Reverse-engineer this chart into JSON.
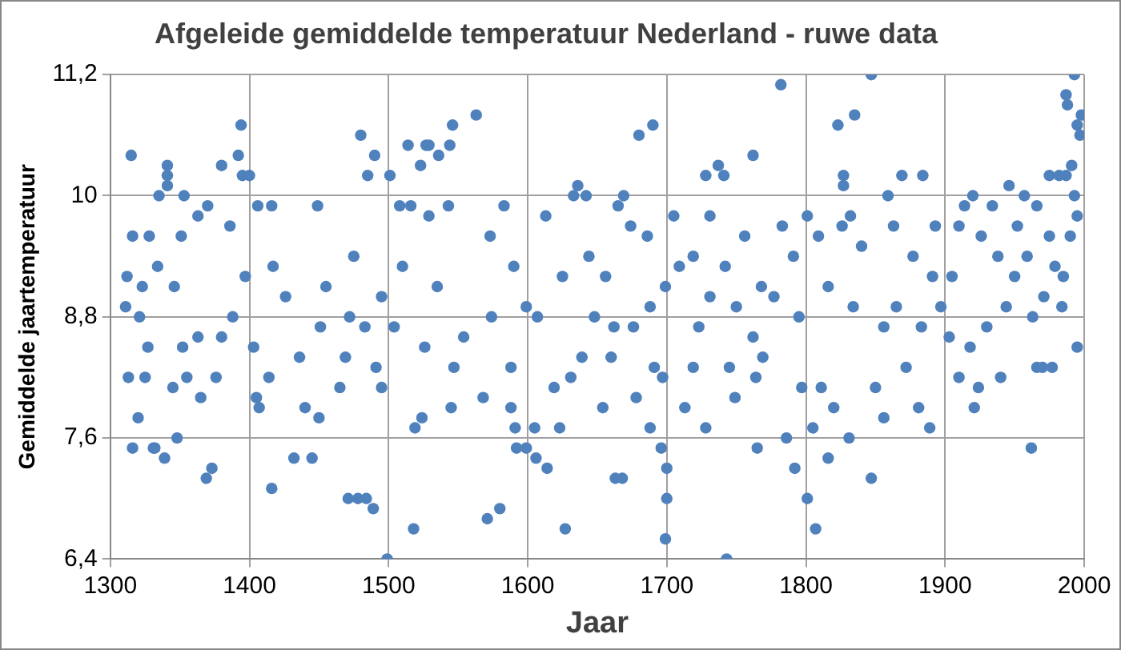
{
  "chart_data": {
    "type": "scatter",
    "title": "Afgeleide gemiddelde temperatuur Nederland - ruwe data",
    "xlabel": "Jaar",
    "ylabel": "Gemiddelde jaartemperatuur",
    "xlim": [
      1300,
      2000
    ],
    "xticks": [
      1300,
      1400,
      1500,
      1600,
      1700,
      1800,
      1900,
      2000
    ],
    "ylim": [
      6.4,
      11.2
    ],
    "yticks": [
      {
        "value": 6.4,
        "label": "6,4"
      },
      {
        "value": 7.6,
        "label": "7,6"
      },
      {
        "value": 8.8,
        "label": "8,8"
      },
      {
        "value": 10,
        "label": "10"
      },
      {
        "value": 11.2,
        "label": "11,2"
      }
    ],
    "grid": true,
    "legend": false,
    "marker": "circle",
    "series": [
      {
        "color": "#4f81bd",
        "x": [
          1315,
          1394,
          1341,
          1341,
          1341,
          1380,
          1392,
          1395,
          1400,
          1335,
          1353,
          1320,
          1316,
          1331,
          1332,
          1339,
          1348,
          1369,
          1373,
          1416,
          1432,
          1445,
          1471,
          1478,
          1484,
          1489,
          1499,
          1518,
          1480,
          1490,
          1485,
          1501,
          1514,
          1527,
          1523,
          1519,
          1524,
          1311,
          1313,
          1325,
          1327,
          1321,
          1316,
          1312,
          1328,
          1323,
          1334,
          1346,
          1351,
          1352,
          1345,
          1355,
          1365,
          1363,
          1363,
          1370,
          1376,
          1380,
          1386,
          1388,
          1397,
          1403,
          1406,
          1405,
          1407,
          1414,
          1416,
          1417,
          1426,
          1436,
          1440,
          1449,
          1451,
          1450,
          1455,
          1465,
          1469,
          1472,
          1475,
          1483,
          1491,
          1495,
          1495,
          1504,
          1508,
          1510,
          1516,
          1529,
          1526,
          1563,
          1546,
          1544,
          1536,
          1529,
          1680,
          1690,
          1762,
          1737,
          1728,
          1741,
          1636,
          1642,
          1633,
          1669,
          1665,
          1571,
          1580,
          1627,
          1663,
          1668,
          1700,
          1699,
          1700,
          1696,
          1743,
          1765,
          1592,
          1599,
          1606,
          1614,
          1591,
          1605,
          1623,
          1688,
          1728,
          1543,
          1535,
          1554,
          1547,
          1545,
          1568,
          1573,
          1583,
          1574,
          1588,
          1588,
          1590,
          1599,
          1607,
          1613,
          1619,
          1625,
          1631,
          1639,
          1644,
          1648,
          1654,
          1656,
          1662,
          1660,
          1674,
          1676,
          1678,
          1686,
          1688,
          1691,
          1697,
          1699,
          1705,
          1709,
          1713,
          1719,
          1719,
          1723,
          1731,
          1731,
          1742,
          1745,
          1749,
          1750,
          1756,
          1762,
          1764,
          1768,
          1782,
          1847,
          1835,
          1823,
          1827,
          1827,
          1869,
          1884,
          1993,
          1987,
          1988,
          1998,
          1995,
          1997,
          1991,
          1975,
          1982,
          1987,
          1786,
          1792,
          1801,
          1807,
          1816,
          1831,
          1847,
          1805,
          1889,
          1962,
          1921,
          1856,
          1995,
          1977,
          1966,
          1970,
          1769,
          1777,
          1783,
          1791,
          1795,
          1797,
          1801,
          1811,
          1809,
          1816,
          1820,
          1826,
          1832,
          1834,
          1840,
          1850,
          1856,
          1859,
          1863,
          1865,
          1872,
          1877,
          1881,
          1883,
          1891,
          1893,
          1897,
          1903,
          1905,
          1910,
          1910,
          1914,
          1920,
          1918,
          1924,
          1926,
          1930,
          1934,
          1938,
          1940,
          1944,
          1946,
          1950,
          1952,
          1957,
          1959,
          1963,
          1966,
          1971,
          1975,
          1979,
          1984,
          1985,
          1990,
          1993,
          1995
        ],
        "values": [
          10.4,
          10.7,
          10.3,
          10.2,
          10.1,
          10.3,
          10.4,
          10.2,
          10.2,
          10.0,
          10.0,
          7.8,
          7.5,
          7.5,
          7.5,
          7.4,
          7.6,
          7.2,
          7.3,
          7.1,
          7.4,
          7.4,
          7.0,
          7.0,
          7.0,
          6.9,
          6.4,
          6.7,
          10.6,
          10.4,
          10.2,
          10.2,
          10.5,
          10.5,
          10.3,
          7.7,
          7.8,
          8.9,
          8.2,
          8.2,
          8.5,
          8.8,
          9.6,
          9.2,
          9.6,
          9.1,
          9.3,
          9.1,
          9.6,
          8.5,
          8.1,
          8.2,
          8.0,
          8.6,
          9.8,
          9.9,
          8.2,
          8.6,
          9.7,
          8.8,
          9.2,
          8.5,
          9.9,
          8.0,
          7.9,
          8.2,
          9.9,
          9.3,
          9.0,
          8.4,
          7.9,
          9.9,
          8.7,
          7.8,
          9.1,
          8.1,
          8.4,
          8.8,
          9.4,
          8.7,
          8.3,
          8.1,
          9.0,
          8.7,
          9.9,
          9.3,
          9.9,
          9.8,
          8.5,
          10.8,
          10.7,
          10.5,
          10.4,
          10.5,
          10.6,
          10.7,
          10.4,
          10.3,
          10.2,
          10.2,
          10.1,
          10.0,
          10.0,
          10.0,
          9.9,
          6.8,
          6.9,
          6.7,
          7.2,
          7.2,
          7.0,
          6.6,
          7.3,
          7.5,
          6.4,
          7.5,
          7.5,
          7.5,
          7.4,
          7.3,
          7.7,
          7.7,
          7.7,
          7.7,
          7.7,
          9.9,
          9.1,
          8.6,
          8.3,
          7.9,
          8.0,
          9.6,
          9.9,
          8.8,
          7.9,
          8.3,
          9.3,
          8.9,
          8.8,
          9.8,
          8.1,
          9.2,
          8.2,
          8.4,
          9.4,
          8.8,
          7.9,
          9.2,
          8.7,
          8.4,
          9.7,
          8.7,
          8.0,
          9.6,
          8.9,
          8.3,
          8.2,
          9.1,
          9.8,
          9.3,
          7.9,
          8.3,
          9.4,
          8.7,
          9.8,
          9.0,
          9.3,
          8.3,
          8.0,
          8.9,
          9.6,
          8.6,
          8.2,
          9.1,
          11.1,
          11.2,
          10.8,
          10.7,
          10.2,
          10.1,
          10.2,
          10.2,
          11.2,
          11.0,
          10.9,
          10.8,
          10.7,
          10.6,
          10.3,
          10.2,
          10.2,
          10.2,
          7.6,
          7.3,
          7.0,
          6.7,
          7.4,
          7.6,
          7.2,
          7.7,
          7.7,
          7.5,
          7.9,
          7.8,
          8.5,
          8.3,
          8.3,
          8.3,
          8.4,
          9.0,
          9.7,
          9.4,
          8.8,
          8.1,
          9.8,
          8.1,
          9.6,
          9.1,
          7.9,
          9.7,
          9.8,
          8.9,
          9.5,
          8.1,
          8.7,
          10.0,
          9.7,
          8.9,
          8.3,
          9.4,
          7.9,
          8.7,
          9.2,
          9.7,
          8.9,
          8.6,
          9.2,
          8.2,
          9.7,
          9.9,
          10.0,
          8.5,
          8.1,
          9.6,
          8.7,
          9.9,
          9.4,
          8.2,
          8.9,
          10.1,
          9.2,
          9.7,
          10.0,
          9.4,
          8.8,
          9.9,
          9.0,
          9.6,
          9.3,
          8.9,
          9.2,
          9.6,
          10.0,
          9.8
        ]
      }
    ]
  }
}
